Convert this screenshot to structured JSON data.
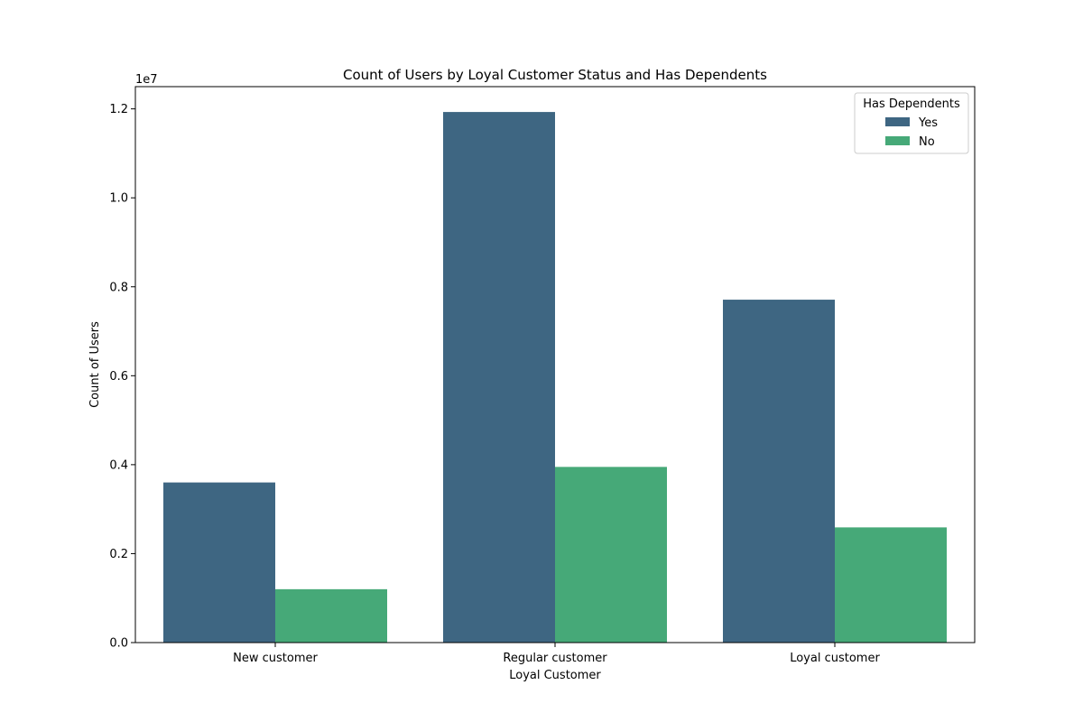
{
  "chart_data": {
    "type": "bar",
    "title": "Count of Users by Loyal Customer Status and Has Dependents",
    "xlabel": "Loyal Customer",
    "ylabel": "Count of Users",
    "y_offset_label": "1e7",
    "y_scale": 10000000,
    "ylim": [
      0,
      12500000
    ],
    "y_ticks": [
      0,
      2000000,
      4000000,
      6000000,
      8000000,
      10000000,
      12000000
    ],
    "y_tick_labels": [
      "0.0",
      "0.2",
      "0.4",
      "0.6",
      "0.8",
      "1.0",
      "1.2"
    ],
    "categories": [
      "New customer",
      "Regular customer",
      "Loyal customer"
    ],
    "series": [
      {
        "name": "Yes",
        "color": "#3e6682",
        "values": [
          3600000,
          11930000,
          7710000
        ]
      },
      {
        "name": "No",
        "color": "#46a978",
        "values": [
          1200000,
          3950000,
          2590000
        ]
      }
    ],
    "legend": {
      "title": "Has Dependents",
      "position": "top-right"
    },
    "grid": false
  }
}
